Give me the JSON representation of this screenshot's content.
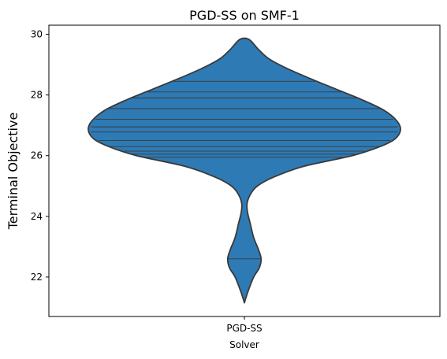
{
  "chart_data": {
    "type": "violin",
    "title": "PGD-SS on SMF-1",
    "xlabel": "Solver",
    "ylabel": "Terminal Objective",
    "categories": [
      "PGD-SS"
    ],
    "ylim": [
      20.7,
      30.3
    ],
    "yticks": [
      22,
      24,
      26,
      28,
      30
    ],
    "grid": false,
    "colors": {
      "fill": "#2e7ab5",
      "edge": "#3a3a3a"
    },
    "series": [
      {
        "category": "PGD-SS",
        "points": [
          22.6,
          25.95,
          26.05,
          26.15,
          26.3,
          26.5,
          26.78,
          26.95,
          27.2,
          27.55,
          27.9,
          28.1,
          28.45
        ],
        "density_profile": [
          [
            21.15,
            0.0
          ],
          [
            21.5,
            0.09
          ],
          [
            22.0,
            0.25
          ],
          [
            22.3,
            0.4
          ],
          [
            22.6,
            0.45
          ],
          [
            22.9,
            0.38
          ],
          [
            23.3,
            0.25
          ],
          [
            23.75,
            0.16
          ],
          [
            24.1,
            0.09
          ],
          [
            24.4,
            0.07
          ],
          [
            24.7,
            0.15
          ],
          [
            25.0,
            0.35
          ],
          [
            25.3,
            0.8
          ],
          [
            25.65,
            1.6
          ],
          [
            26.0,
            2.9
          ],
          [
            26.3,
            3.65
          ],
          [
            26.55,
            4.05
          ],
          [
            26.85,
            4.2
          ],
          [
            27.15,
            4.1
          ],
          [
            27.5,
            3.75
          ],
          [
            27.85,
            3.15
          ],
          [
            28.2,
            2.45
          ],
          [
            28.55,
            1.75
          ],
          [
            28.9,
            1.1
          ],
          [
            29.2,
            0.65
          ],
          [
            29.5,
            0.38
          ],
          [
            29.8,
            0.16
          ],
          [
            29.87,
            0.0
          ]
        ]
      }
    ]
  }
}
